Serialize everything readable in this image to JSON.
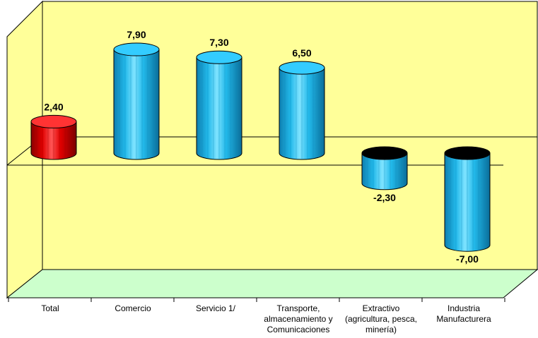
{
  "chart_data": {
    "type": "bar",
    "categories": [
      "Total",
      "Comercio",
      "Servicio 1/",
      "Transporte, almacenamiento y Comunicaciones",
      "Extractivo (agricultura, pesca, minería)",
      "Industria Manufacturera"
    ],
    "values": [
      2.4,
      7.9,
      7.3,
      6.5,
      -2.3,
      -7.0
    ],
    "value_labels": [
      "2,40",
      "7,90",
      "7,30",
      "6,50",
      "-2,30",
      "-7,00"
    ],
    "title": "",
    "xlabel": "",
    "ylabel": "",
    "ylim": [
      -8,
      10
    ],
    "grid": false,
    "legend": "none",
    "style": "3d-cylinder",
    "colors": {
      "wall": "#FFFF99",
      "floor": "#CCFFCC",
      "total_body": "#E60000",
      "total_top": "#FF3333",
      "bar_body": "#1EB5E6",
      "bar_top": "#33CCFF",
      "negative_top": "#000000"
    }
  }
}
